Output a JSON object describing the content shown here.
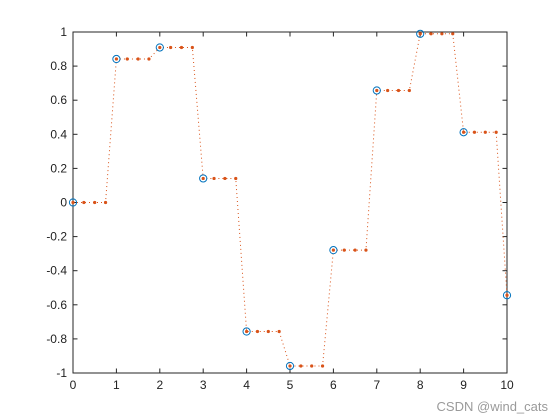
{
  "chart_data": {
    "type": "scatter",
    "title": "",
    "xlabel": "",
    "ylabel": "",
    "xlim": [
      0,
      10
    ],
    "ylim": [
      -1,
      1
    ],
    "x_ticks": [
      0,
      1,
      2,
      3,
      4,
      5,
      6,
      7,
      8,
      9,
      10
    ],
    "y_ticks": [
      -1,
      -0.8,
      -0.6,
      -0.4,
      -0.2,
      0,
      0.2,
      0.4,
      0.6,
      0.8,
      1
    ],
    "x_tick_labels": [
      "0",
      "1",
      "2",
      "3",
      "4",
      "5",
      "6",
      "7",
      "8",
      "9",
      "10"
    ],
    "y_tick_labels": [
      "-1",
      "-0.8",
      "-0.6",
      "-0.4",
      "-0.2",
      "0",
      "0.2",
      "0.4",
      "0.6",
      "0.8",
      "1"
    ],
    "grid": false,
    "legend": "none",
    "series": [
      {
        "style": "circle-markers",
        "color": "#0072BD",
        "x": [
          0,
          1,
          2,
          3,
          4,
          5,
          6,
          7,
          8,
          9,
          10
        ],
        "y": [
          0,
          0.8415,
          0.9093,
          0.1411,
          -0.7568,
          -0.9589,
          -0.2794,
          0.657,
          0.9894,
          0.4121,
          -0.544
        ]
      },
      {
        "style": "zero-order-hold-dotted",
        "color": "#D95319",
        "x": [
          0,
          0.25,
          0.5,
          0.75,
          1,
          1.25,
          1.5,
          1.75,
          2,
          2.25,
          2.5,
          2.75,
          3,
          3.25,
          3.5,
          3.75,
          4,
          4.25,
          4.5,
          4.75,
          5,
          5.25,
          5.5,
          5.75,
          6,
          6.25,
          6.5,
          6.75,
          7,
          7.25,
          7.5,
          7.75,
          8,
          8.25,
          8.5,
          8.75,
          9,
          9.25,
          9.5,
          9.75,
          10
        ],
        "y": [
          0,
          0,
          0,
          0,
          0.8415,
          0.8415,
          0.8415,
          0.8415,
          0.9093,
          0.9093,
          0.9093,
          0.9093,
          0.1411,
          0.1411,
          0.1411,
          0.1411,
          -0.7568,
          -0.7568,
          -0.7568,
          -0.7568,
          -0.9589,
          -0.9589,
          -0.9589,
          -0.9589,
          -0.2794,
          -0.2794,
          -0.2794,
          -0.2794,
          0.657,
          0.657,
          0.657,
          0.657,
          0.9894,
          0.9894,
          0.9894,
          0.9894,
          0.4121,
          0.4121,
          0.4121,
          0.4121,
          -0.544
        ]
      }
    ]
  },
  "watermark": "CSDN @wind_cats"
}
